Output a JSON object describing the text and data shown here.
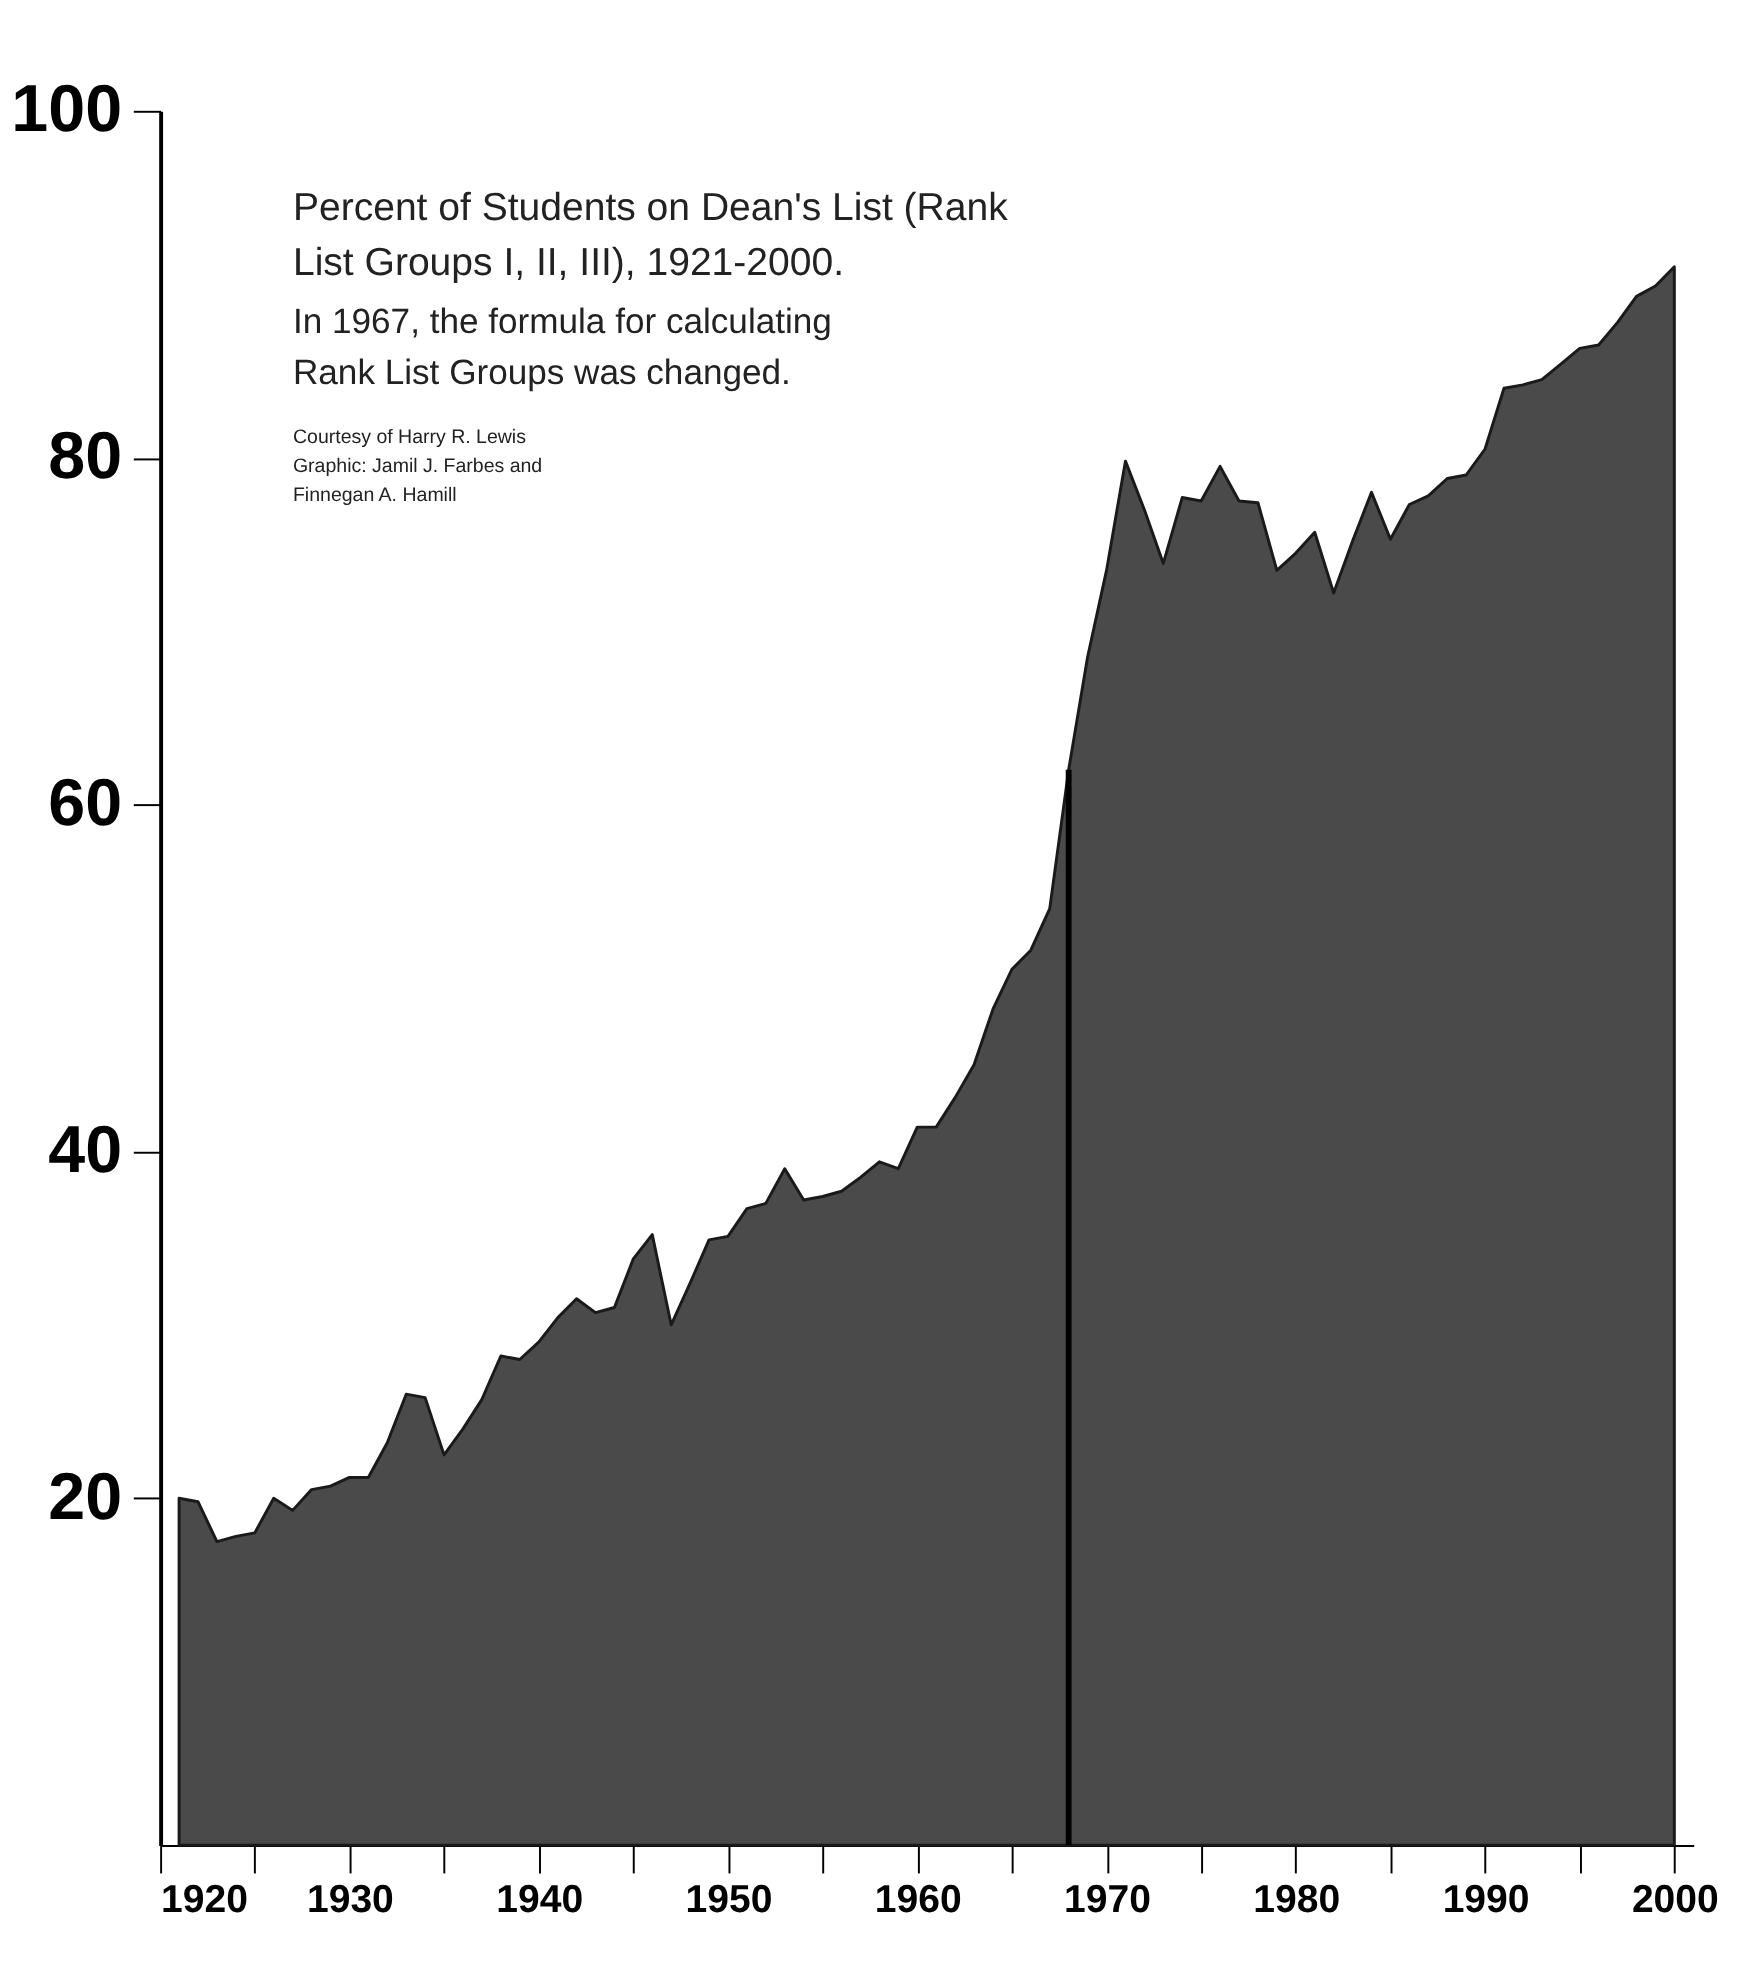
{
  "chart_data": {
    "type": "area",
    "title": "Percent of Students on Dean's List (Rank List Groups I, II, III), 1921-2000.",
    "subtitle": "In 1967, the formula for calculating Rank List Groups was changed.",
    "annotations": [
      "Courtesy of Harry R. Lewis",
      "Graphic: Jamil J. Farbes and Finnegan A. Hamill"
    ],
    "x": [
      1921,
      1922,
      1923,
      1924,
      1925,
      1926,
      1927,
      1928,
      1929,
      1930,
      1931,
      1932,
      1933,
      1934,
      1935,
      1936,
      1937,
      1938,
      1939,
      1940,
      1941,
      1942,
      1943,
      1944,
      1945,
      1946,
      1947,
      1948,
      1949,
      1950,
      1951,
      1952,
      1953,
      1954,
      1955,
      1956,
      1957,
      1958,
      1959,
      1960,
      1961,
      1962,
      1963,
      1964,
      1965,
      1966,
      1967,
      1968,
      1969,
      1970,
      1971,
      1972,
      1973,
      1974,
      1975,
      1976,
      1977,
      1978,
      1979,
      1980,
      1981,
      1982,
      1983,
      1984,
      1985,
      1986,
      1987,
      1988,
      1989,
      1990,
      1991,
      1992,
      1993,
      1994,
      1995,
      1996,
      1997,
      1998,
      1999,
      2000
    ],
    "series": [
      {
        "color": "#4a4a4a",
        "values": [
          20,
          19.8,
          17.5,
          17.8,
          18,
          20,
          19.3,
          20.5,
          20.7,
          21.2,
          21.2,
          23.2,
          26,
          25.8,
          22.5,
          24,
          25.7,
          28.2,
          28,
          29,
          30.4,
          31.5,
          30.7,
          31,
          33.8,
          35.2,
          30,
          32.4,
          34.9,
          35.1,
          36.7,
          37,
          39,
          37.2,
          37.4,
          37.7,
          38.5,
          39.4,
          39,
          41.4,
          41.4,
          43.1,
          45,
          48.2,
          50.5,
          51.6,
          54,
          62,
          68.5,
          73.5,
          79.8,
          77,
          73.9,
          77.7,
          77.5,
          79.5,
          77.5,
          77.4,
          73.5,
          74.5,
          75.7,
          72.2,
          75.2,
          78,
          75.3,
          77.3,
          77.8,
          78.8,
          79,
          80.5,
          84,
          84.2,
          84.5,
          85.4,
          86.3,
          86.5,
          87.8,
          89.3,
          89.9,
          91
        ]
      }
    ],
    "xlim": [
      1920,
      2001
    ],
    "xticks": [
      1920,
      {
        "value": 1925,
        "label": null
      },
      1930,
      {
        "value": 1935,
        "label": null
      },
      1940,
      {
        "value": 1945,
        "label": null
      },
      1950,
      {
        "value": 1955,
        "label": null
      },
      1960,
      {
        "value": 1965,
        "label": null
      },
      1970,
      {
        "value": 1975,
        "label": null
      },
      1980,
      {
        "value": 1985,
        "label": null
      },
      1990,
      {
        "value": 1995,
        "label": null
      },
      2000
    ],
    "ylim": [
      0,
      100
    ],
    "yticks": [
      20,
      40,
      60,
      80,
      100
    ],
    "ref_lines": [
      {
        "axis": "x",
        "value": 1968,
        "color": "#000000"
      }
    ],
    "grid": false
  }
}
